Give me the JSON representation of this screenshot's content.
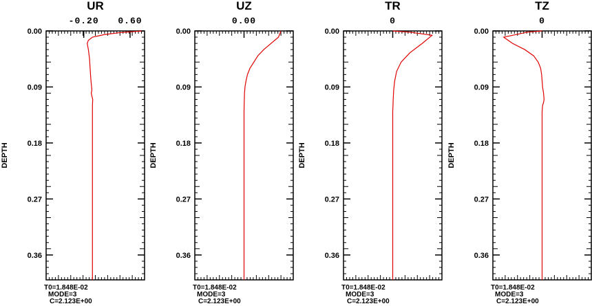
{
  "chart_data": [
    {
      "type": "line",
      "title": "UR",
      "top_tick_labels": [
        "-0.20",
        "0.60"
      ],
      "top_tick_values": [
        -0.2,
        0.6
      ],
      "xlim": [
        -0.85,
        0.85
      ],
      "ylabel": "DEPTH",
      "ylim": [
        0.0,
        0.4
      ],
      "y_tick_values": [
        0.0,
        0.09,
        0.18,
        0.27,
        0.36
      ],
      "y_tick_labels": [
        "0.00",
        "0.09",
        "0.18",
        "0.27",
        "0.36"
      ],
      "line_color": "#e00000",
      "info": [
        "T0=1.848E-02",
        "MODE=3",
        "C=2.123E+00"
      ],
      "series": [
        {
          "x": [
            0.8,
            0.4,
            0.15,
            -0.05,
            -0.12,
            -0.14,
            -0.12,
            -0.1,
            -0.09,
            -0.08,
            -0.07,
            -0.06,
            -0.07,
            -0.06,
            -0.045,
            -0.05,
            -0.05,
            -0.05,
            -0.05,
            -0.05
          ],
          "y": [
            0.0,
            0.003,
            0.006,
            0.01,
            0.015,
            0.02,
            0.03,
            0.045,
            0.06,
            0.075,
            0.085,
            0.095,
            0.1,
            0.105,
            0.11,
            0.12,
            0.18,
            0.27,
            0.36,
            0.4
          ]
        }
      ]
    },
    {
      "type": "line",
      "title": "UZ",
      "top_tick_labels": [
        "0.00"
      ],
      "top_tick_values": [
        0.0
      ],
      "xlim": [
        -1.0,
        1.0
      ],
      "ylabel": "DEPTH",
      "ylim": [
        0.0,
        0.4
      ],
      "y_tick_values": [
        0.0,
        0.09,
        0.18,
        0.27,
        0.36
      ],
      "y_tick_labels": [
        "0.00",
        "0.09",
        "0.18",
        "0.27",
        "0.36"
      ],
      "line_color": "#e00000",
      "info": [
        "T0=1.848E-02",
        "MODE=3",
        "C=2.123E+00"
      ],
      "series": [
        {
          "x": [
            0.75,
            0.7,
            0.55,
            0.4,
            0.28,
            0.2,
            0.12,
            0.07,
            0.04,
            0.02,
            0.01,
            0.005,
            0.0,
            0.0,
            0.0,
            0.0
          ],
          "y": [
            0.0,
            0.01,
            0.02,
            0.03,
            0.04,
            0.05,
            0.06,
            0.07,
            0.08,
            0.09,
            0.1,
            0.11,
            0.13,
            0.18,
            0.3,
            0.4
          ]
        }
      ]
    },
    {
      "type": "line",
      "title": "TR",
      "top_tick_labels": [
        "0"
      ],
      "top_tick_values": [
        0.0
      ],
      "xlim": [
        -1.0,
        1.0
      ],
      "ylabel": "DEPTH",
      "ylim": [
        0.0,
        0.4
      ],
      "y_tick_values": [
        0.0,
        0.09,
        0.18,
        0.27,
        0.36
      ],
      "y_tick_labels": [
        "0.00",
        "0.09",
        "0.18",
        "0.27",
        "0.36"
      ],
      "line_color": "#e00000",
      "info": [
        "T0=1.848E-02",
        "MODE=3",
        "C=2.123E+00"
      ],
      "series": [
        {
          "x": [
            0.0,
            0.35,
            0.8,
            0.6,
            0.35,
            0.17,
            0.08,
            0.04,
            0.02,
            0.01,
            0.005,
            0.0,
            0.0,
            0.0
          ],
          "y": [
            0.0,
            0.002,
            0.007,
            0.02,
            0.035,
            0.05,
            0.065,
            0.08,
            0.095,
            0.11,
            0.12,
            0.13,
            0.2,
            0.4
          ]
        }
      ]
    },
    {
      "type": "line",
      "title": "TZ",
      "top_tick_labels": [
        "0"
      ],
      "top_tick_values": [
        0.0
      ],
      "xlim": [
        -1.0,
        1.0
      ],
      "ylabel": "DEPTH",
      "ylim": [
        0.0,
        0.4
      ],
      "y_tick_values": [
        0.0,
        0.09,
        0.18,
        0.27,
        0.36
      ],
      "y_tick_labels": [
        "0.00",
        "0.09",
        "0.18",
        "0.27",
        "0.36"
      ],
      "line_color": "#e00000",
      "info": [
        "T0=1.848E-02",
        "MODE=3",
        "C=2.123E+00"
      ],
      "series": [
        {
          "x": [
            0.0,
            -0.3,
            -0.78,
            -0.6,
            -0.35,
            -0.17,
            -0.08,
            -0.03,
            -0.01,
            0.0,
            0.01,
            0.03,
            0.04,
            0.03,
            0.01,
            0.0,
            0.0
          ],
          "y": [
            0.0,
            0.002,
            0.01,
            0.02,
            0.03,
            0.04,
            0.05,
            0.06,
            0.07,
            0.08,
            0.09,
            0.1,
            0.11,
            0.115,
            0.12,
            0.13,
            0.4
          ]
        }
      ]
    }
  ]
}
